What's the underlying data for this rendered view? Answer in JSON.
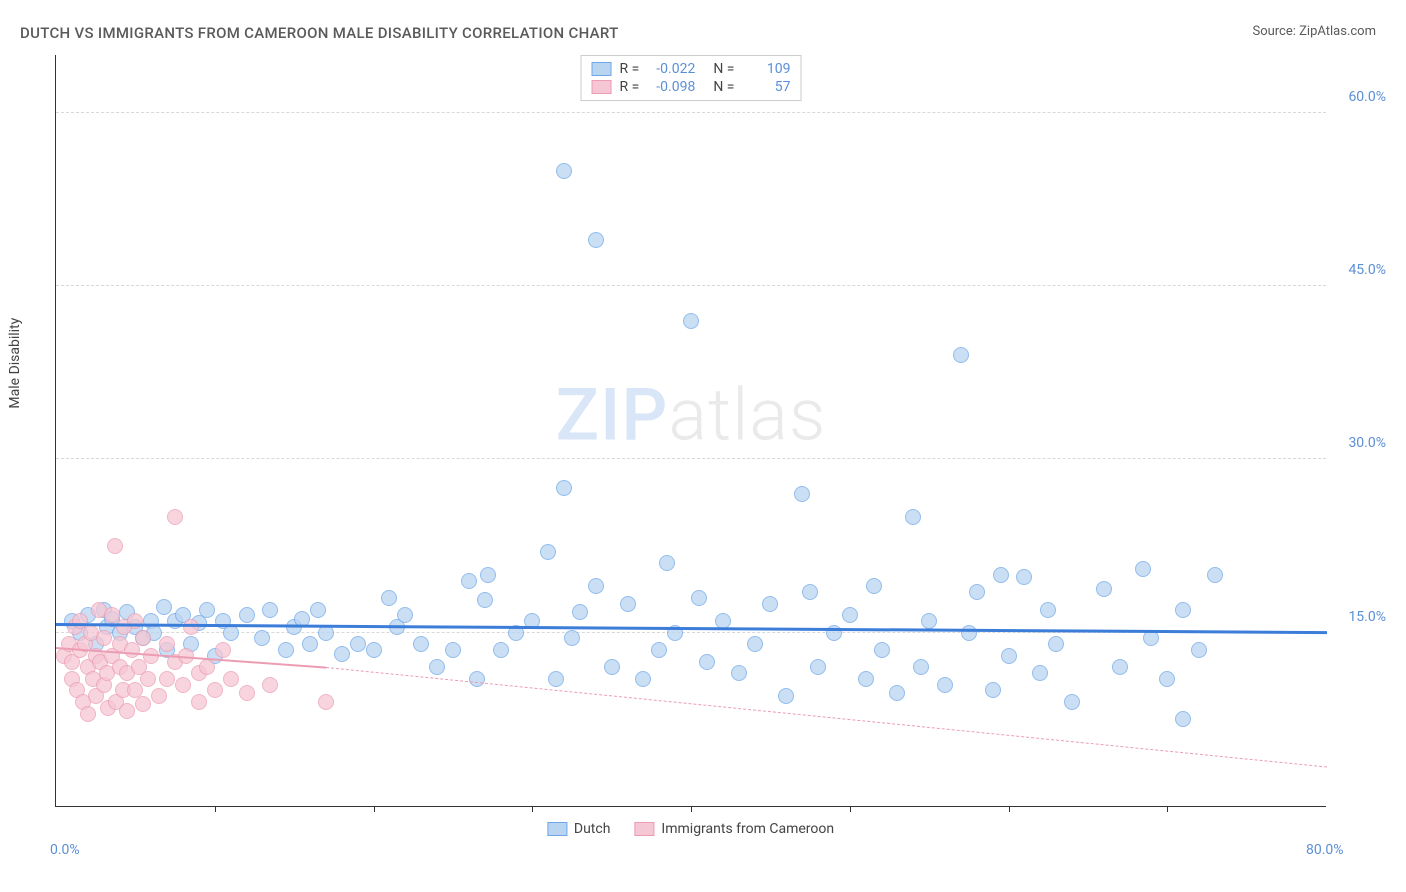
{
  "title": "DUTCH VS IMMIGRANTS FROM CAMEROON MALE DISABILITY CORRELATION CHART",
  "source_label": "Source: ",
  "source_name": "ZipAtlas.com",
  "watermark": {
    "part1": "ZIP",
    "part2": "atlas"
  },
  "chart": {
    "type": "scatter",
    "y_axis_title": "Male Disability",
    "xlim": [
      0,
      80
    ],
    "ylim": [
      0,
      65
    ],
    "x_ticks": [
      0,
      10,
      20,
      30,
      40,
      50,
      60,
      70,
      80
    ],
    "x_tick_labels": {
      "0": "0.0%",
      "80": "80.0%"
    },
    "y_gridlines": [
      15,
      30,
      45,
      60
    ],
    "y_tick_labels": {
      "15": "15.0%",
      "30": "30.0%",
      "45": "45.0%",
      "60": "60.0%"
    },
    "grid_color": "#d8d8d8",
    "background_color": "#ffffff",
    "axis_color": "#333333",
    "tick_label_color": "#5b8fd6",
    "point_radius": 8,
    "series": [
      {
        "name": "Dutch",
        "label": "Dutch",
        "fill": "#b9d4f1",
        "stroke": "#6fa8e8",
        "fill_opacity": 0.75,
        "r_label": "R =",
        "r_value": "-0.022",
        "n_label": "N =",
        "n_value": "109",
        "trend": {
          "x1": 0,
          "y1": 15.9,
          "x2": 80,
          "y2": 15.2,
          "color": "#3b7dd8",
          "width": 2.5
        },
        "points": [
          [
            1,
            16
          ],
          [
            1.5,
            15
          ],
          [
            2,
            16.5
          ],
          [
            2.5,
            14
          ],
          [
            3,
            17
          ],
          [
            3.2,
            15.5
          ],
          [
            3.5,
            16.2
          ],
          [
            4,
            15
          ],
          [
            4.5,
            16.8
          ],
          [
            5,
            15.5
          ],
          [
            5.5,
            14.5
          ],
          [
            6,
            16
          ],
          [
            6.2,
            15
          ],
          [
            6.8,
            17.2
          ],
          [
            7,
            13.5
          ],
          [
            7.5,
            16
          ],
          [
            8,
            16.5
          ],
          [
            8.5,
            14
          ],
          [
            9,
            15.8
          ],
          [
            9.5,
            17
          ],
          [
            10,
            13
          ],
          [
            10.5,
            16
          ],
          [
            11,
            15
          ],
          [
            12,
            16.5
          ],
          [
            13,
            14.5
          ],
          [
            13.5,
            17
          ],
          [
            14.5,
            13.5
          ],
          [
            15,
            15.5
          ],
          [
            15.5,
            16.2
          ],
          [
            16,
            14
          ],
          [
            16.5,
            17
          ],
          [
            17,
            15
          ],
          [
            18,
            13.2
          ],
          [
            19,
            14
          ],
          [
            20,
            13.5
          ],
          [
            21,
            18
          ],
          [
            21.5,
            15.5
          ],
          [
            22,
            16.5
          ],
          [
            23,
            14
          ],
          [
            24,
            12
          ],
          [
            25,
            13.5
          ],
          [
            26,
            19.5
          ],
          [
            26.5,
            11
          ],
          [
            27,
            17.8
          ],
          [
            27.2,
            20
          ],
          [
            28,
            13.5
          ],
          [
            29,
            15
          ],
          [
            30,
            16
          ],
          [
            31,
            22
          ],
          [
            31.5,
            11
          ],
          [
            32,
            27.5
          ],
          [
            32,
            55
          ],
          [
            32.5,
            14.5
          ],
          [
            33,
            16.8
          ],
          [
            34,
            49
          ],
          [
            34,
            19
          ],
          [
            35,
            12
          ],
          [
            36,
            17.5
          ],
          [
            37,
            11
          ],
          [
            38,
            13.5
          ],
          [
            38.5,
            21
          ],
          [
            39,
            15
          ],
          [
            40,
            42
          ],
          [
            40.5,
            18
          ],
          [
            41,
            12.5
          ],
          [
            42,
            16
          ],
          [
            43,
            11.5
          ],
          [
            44,
            14
          ],
          [
            45,
            17.5
          ],
          [
            46,
            9.5
          ],
          [
            47,
            27
          ],
          [
            47.5,
            18.5
          ],
          [
            48,
            12
          ],
          [
            49,
            15
          ],
          [
            50,
            16.5
          ],
          [
            51,
            11
          ],
          [
            51.5,
            19
          ],
          [
            52,
            13.5
          ],
          [
            53,
            9.8
          ],
          [
            54,
            25
          ],
          [
            54.5,
            12
          ],
          [
            55,
            16
          ],
          [
            56,
            10.5
          ],
          [
            57,
            39
          ],
          [
            57.5,
            15
          ],
          [
            58,
            18.5
          ],
          [
            59,
            10
          ],
          [
            59.5,
            20
          ],
          [
            60,
            13
          ],
          [
            61,
            19.8
          ],
          [
            62,
            11.5
          ],
          [
            62.5,
            17
          ],
          [
            63,
            14
          ],
          [
            64,
            9
          ],
          [
            66,
            18.8
          ],
          [
            67,
            12
          ],
          [
            68.5,
            20.5
          ],
          [
            69,
            14.5
          ],
          [
            70,
            11
          ],
          [
            71,
            17
          ],
          [
            71,
            7.5
          ],
          [
            72,
            13.5
          ],
          [
            73,
            20
          ]
        ]
      },
      {
        "name": "Immigrants from Cameroon",
        "label": "Immigrants from Cameroon",
        "fill": "#f5c6d3",
        "stroke": "#ec9db3",
        "fill_opacity": 0.75,
        "r_label": "R =",
        "r_value": "-0.098",
        "n_label": "N =",
        "n_value": "57",
        "trend": {
          "x1": 0,
          "y1": 13.8,
          "x2": 17,
          "y2": 12.1,
          "color": "#ec9db3",
          "width": 2,
          "dash_x2": 80,
          "dash_y2": 3.5,
          "dash_color": "#ec9db3"
        },
        "points": [
          [
            0.5,
            13
          ],
          [
            0.8,
            14
          ],
          [
            1,
            12.5
          ],
          [
            1,
            11
          ],
          [
            1.2,
            15.5
          ],
          [
            1.3,
            10
          ],
          [
            1.5,
            13.5
          ],
          [
            1.5,
            16
          ],
          [
            1.7,
            9
          ],
          [
            1.8,
            14
          ],
          [
            2,
            12
          ],
          [
            2,
            8
          ],
          [
            2.2,
            15
          ],
          [
            2.3,
            11
          ],
          [
            2.5,
            13
          ],
          [
            2.5,
            9.5
          ],
          [
            2.7,
            17
          ],
          [
            2.8,
            12.5
          ],
          [
            3,
            14.5
          ],
          [
            3,
            10.5
          ],
          [
            3.2,
            11.5
          ],
          [
            3.3,
            8.5
          ],
          [
            3.5,
            16.5
          ],
          [
            3.5,
            13
          ],
          [
            3.7,
            22.5
          ],
          [
            3.8,
            9
          ],
          [
            4,
            12
          ],
          [
            4,
            14
          ],
          [
            4.2,
            10
          ],
          [
            4.3,
            15.5
          ],
          [
            4.5,
            11.5
          ],
          [
            4.5,
            8.2
          ],
          [
            4.8,
            13.5
          ],
          [
            5,
            16
          ],
          [
            5,
            10
          ],
          [
            5.2,
            12
          ],
          [
            5.5,
            14.5
          ],
          [
            5.5,
            8.8
          ],
          [
            5.8,
            11
          ],
          [
            6,
            13
          ],
          [
            6.5,
            9.5
          ],
          [
            7,
            14
          ],
          [
            7,
            11
          ],
          [
            7.5,
            12.5
          ],
          [
            7.5,
            25
          ],
          [
            8,
            10.5
          ],
          [
            8.2,
            13
          ],
          [
            8.5,
            15.5
          ],
          [
            9,
            11.5
          ],
          [
            9,
            9
          ],
          [
            9.5,
            12
          ],
          [
            10,
            10
          ],
          [
            10.5,
            13.5
          ],
          [
            11,
            11
          ],
          [
            12,
            9.8
          ],
          [
            13.5,
            10.5
          ],
          [
            17,
            9
          ]
        ]
      }
    ]
  },
  "legend_bottom": [
    {
      "label": "Dutch",
      "fill": "#b9d4f1",
      "stroke": "#6fa8e8"
    },
    {
      "label": "Immigrants from Cameroon",
      "fill": "#f5c6d3",
      "stroke": "#ec9db3"
    }
  ]
}
